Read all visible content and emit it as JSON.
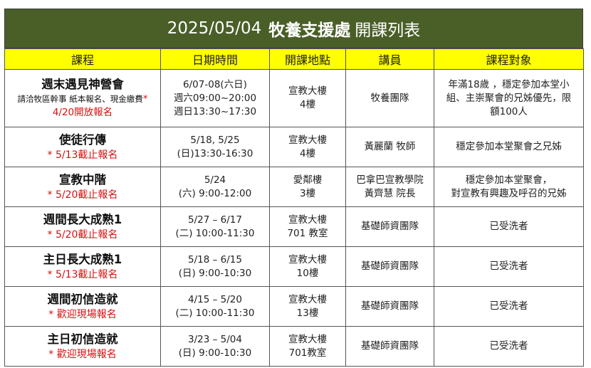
{
  "title": {
    "date": "2025/05/04",
    "org": "牧養支援處",
    "suffix": "開課列表"
  },
  "headers": [
    "課程",
    "日期時間",
    "開課地點",
    "講員",
    "課程對象"
  ],
  "rows": [
    {
      "course": "週末遇見神營會",
      "note_black": "請洽牧區幹事 紙本報名、現金繳費",
      "note_red": "* 4/20開放報名",
      "datetime": [
        "6/07-08(六日)",
        "週六09:00~20:00",
        "週日13:30~17:30"
      ],
      "location": [
        "宣教大樓",
        "4樓"
      ],
      "speaker": [
        "牧養團隊"
      ],
      "audience": [
        "年滿18歲 ，穩定參加本堂小",
        "組、主崇聚會的兄姊優先，限",
        "額100人"
      ]
    },
    {
      "course": "使徒行傳",
      "note_red": "* 5/13截止報名",
      "datetime": [
        "5/18, 5/25",
        "(日)13:30-16:30"
      ],
      "location": [
        "宣教大樓",
        "4樓"
      ],
      "speaker": [
        "黃麗蘭 牧師"
      ],
      "audience": [
        "穩定參加本堂聚會之兄姊"
      ]
    },
    {
      "course": "宣教中階",
      "note_red": "* 5/20截止報名",
      "datetime": [
        "5/24",
        "(六) 9:00-12:00"
      ],
      "location": [
        "愛鄰樓",
        "3樓"
      ],
      "speaker": [
        "巴拿巴宣教學院",
        "黃齊慧 院長"
      ],
      "audience": [
        "穩定參加本堂聚會，",
        "對宣教有興趣及呼召的兄姊"
      ]
    },
    {
      "course": "週間長大成熟1",
      "note_red": "* 5/20截止報名",
      "datetime": [
        "5/27 – 6/17",
        "(二) 10:00-11:30"
      ],
      "location": [
        "宣教大樓",
        "701 教室"
      ],
      "speaker": [
        "基礎師資團隊"
      ],
      "audience": [
        "已受洗者"
      ]
    },
    {
      "course": "主日長大成熟1",
      "note_red": "* 5/13截止報名",
      "datetime": [
        "5/18 – 6/15",
        "(日) 9:00-10:30"
      ],
      "location": [
        "宣教大樓",
        "10樓"
      ],
      "speaker": [
        "基礎師資團隊"
      ],
      "audience": [
        "已受洗者"
      ]
    },
    {
      "course": "週間初信造就",
      "note_red": "* 歡迎現場報名",
      "datetime": [
        "4/15 – 5/20",
        "(二) 10:00-11:30"
      ],
      "location": [
        "宣教大樓",
        "13樓"
      ],
      "speaker": [
        "基礎師資團隊"
      ],
      "audience": [
        "已受洗者"
      ]
    },
    {
      "course": "主日初信造就",
      "note_red": "* 歡迎現場報名",
      "datetime": [
        "3/23 – 5/04",
        "(日) 9:00-10:30"
      ],
      "location": [
        "宣教大樓",
        "701教室"
      ],
      "speaker": [
        "基礎師資團隊"
      ],
      "audience": [
        "已受洗者"
      ]
    }
  ]
}
